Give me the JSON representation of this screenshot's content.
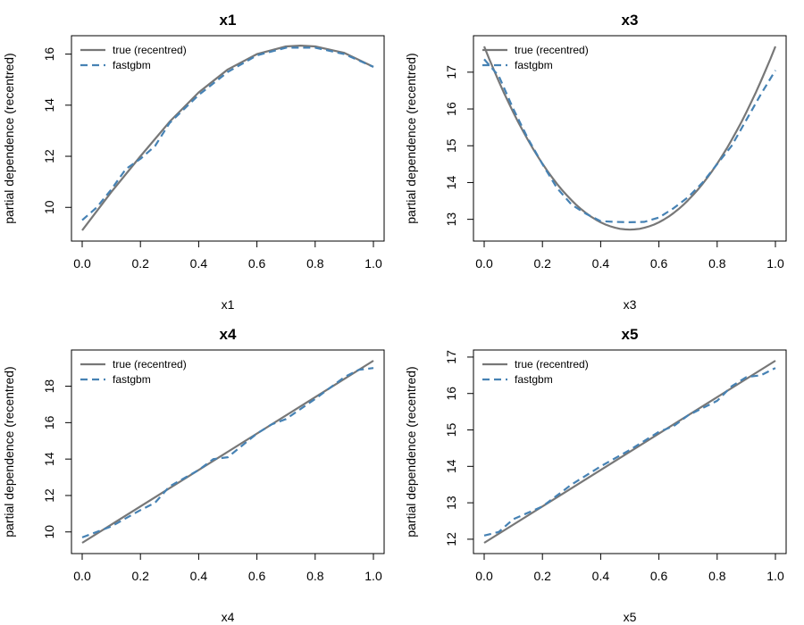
{
  "chart_data": [
    {
      "type": "line",
      "title": "x1",
      "xlabel": "x1",
      "ylabel": "partial dependence (recentred)",
      "xlim": [
        0.0,
        1.0
      ],
      "ylim": [
        9.1,
        16.3
      ],
      "xticks": [
        "0.0",
        "0.2",
        "0.4",
        "0.6",
        "0.8",
        "1.0"
      ],
      "yticks": [
        "10",
        "12",
        "14",
        "16"
      ],
      "legend": {
        "position": "top-left",
        "entries": [
          "true (recentred)",
          "fastgbm"
        ]
      },
      "series": [
        {
          "name": "true (recentred)",
          "color": "#777777",
          "style": "solid",
          "x": [
            0.0,
            0.1,
            0.2,
            0.3,
            0.4,
            0.5,
            0.6,
            0.7,
            0.75,
            0.8,
            0.9,
            1.0
          ],
          "y": [
            9.1,
            10.6,
            12.0,
            13.35,
            14.5,
            15.4,
            16.0,
            16.3,
            16.33,
            16.3,
            16.05,
            15.5
          ]
        },
        {
          "name": "fastgbm",
          "color": "#4682B4",
          "style": "dashed",
          "x": [
            0.0,
            0.05,
            0.1,
            0.15,
            0.2,
            0.25,
            0.3,
            0.4,
            0.5,
            0.6,
            0.7,
            0.8,
            0.9,
            1.0
          ],
          "y": [
            9.5,
            10.0,
            10.7,
            11.5,
            11.9,
            12.4,
            13.3,
            14.4,
            15.3,
            15.95,
            16.25,
            16.25,
            16.0,
            15.5
          ]
        }
      ]
    },
    {
      "type": "line",
      "title": "x3",
      "xlabel": "x3",
      "ylabel": "partial dependence (recentred)",
      "xlim": [
        0.0,
        1.0
      ],
      "ylim": [
        12.7,
        17.7
      ],
      "xticks": [
        "0.0",
        "0.2",
        "0.4",
        "0.6",
        "0.8",
        "1.0"
      ],
      "yticks": [
        "13",
        "14",
        "15",
        "16",
        "17"
      ],
      "legend": {
        "position": "top-left",
        "entries": [
          "true (recentred)",
          "fastgbm"
        ]
      },
      "series": [
        {
          "name": "true (recentred)",
          "color": "#777777",
          "style": "solid",
          "x": [
            0.0,
            0.1,
            0.2,
            0.3,
            0.4,
            0.5,
            0.6,
            0.7,
            0.8,
            0.9,
            1.0
          ],
          "y": [
            17.7,
            16.0,
            14.6,
            13.5,
            12.9,
            12.72,
            12.9,
            13.5,
            14.6,
            16.0,
            17.7
          ],
          "curve": "quadratic"
        },
        {
          "name": "fastgbm",
          "color": "#4682B4",
          "style": "dashed",
          "x": [
            0.0,
            0.05,
            0.1,
            0.15,
            0.2,
            0.25,
            0.3,
            0.35,
            0.4,
            0.45,
            0.5,
            0.55,
            0.6,
            0.65,
            0.7,
            0.75,
            0.8,
            0.85,
            0.9,
            0.95,
            1.0
          ],
          "y": [
            17.35,
            16.9,
            16.0,
            15.2,
            14.5,
            13.85,
            13.4,
            13.15,
            12.95,
            12.93,
            12.92,
            12.93,
            13.05,
            13.3,
            13.6,
            14.0,
            14.5,
            15.0,
            15.7,
            16.4,
            17.05
          ]
        }
      ]
    },
    {
      "type": "line",
      "title": "x4",
      "xlabel": "x4",
      "ylabel": "partial dependence (recentred)",
      "xlim": [
        0.0,
        1.0
      ],
      "ylim": [
        9.4,
        19.4
      ],
      "xticks": [
        "0.0",
        "0.2",
        "0.4",
        "0.6",
        "0.8",
        "1.0"
      ],
      "yticks": [
        "10",
        "12",
        "14",
        "16",
        "18"
      ],
      "legend": {
        "position": "top-left",
        "entries": [
          "true (recentred)",
          "fastgbm"
        ]
      },
      "series": [
        {
          "name": "true (recentred)",
          "color": "#777777",
          "style": "solid",
          "x": [
            0.0,
            1.0
          ],
          "y": [
            9.4,
            19.4
          ]
        },
        {
          "name": "fastgbm",
          "color": "#4682B4",
          "style": "dashed",
          "x": [
            0.0,
            0.1,
            0.2,
            0.25,
            0.3,
            0.4,
            0.45,
            0.5,
            0.6,
            0.65,
            0.7,
            0.8,
            0.9,
            0.95,
            1.0
          ],
          "y": [
            9.7,
            10.3,
            11.2,
            11.6,
            12.5,
            13.4,
            14.0,
            14.1,
            15.4,
            15.9,
            16.2,
            17.3,
            18.5,
            18.9,
            19.0
          ]
        }
      ]
    },
    {
      "type": "line",
      "title": "x5",
      "xlabel": "x5",
      "ylabel": "partial dependence (recentred)",
      "xlim": [
        0.0,
        1.0
      ],
      "ylim": [
        11.9,
        16.9
      ],
      "xticks": [
        "0.0",
        "0.2",
        "0.4",
        "0.6",
        "0.8",
        "1.0"
      ],
      "yticks": [
        "12",
        "13",
        "14",
        "15",
        "16",
        "17"
      ],
      "legend": {
        "position": "top-left",
        "entries": [
          "true (recentred)",
          "fastgbm"
        ]
      },
      "series": [
        {
          "name": "true (recentred)",
          "color": "#777777",
          "style": "solid",
          "x": [
            0.0,
            1.0
          ],
          "y": [
            11.9,
            16.9
          ]
        },
        {
          "name": "fastgbm",
          "color": "#4682B4",
          "style": "dashed",
          "x": [
            0.0,
            0.05,
            0.1,
            0.2,
            0.3,
            0.4,
            0.5,
            0.6,
            0.65,
            0.7,
            0.8,
            0.85,
            0.9,
            0.95,
            1.0
          ],
          "y": [
            12.1,
            12.2,
            12.55,
            12.9,
            13.5,
            14.0,
            14.45,
            14.95,
            15.1,
            15.4,
            15.8,
            16.2,
            16.45,
            16.5,
            16.7
          ]
        }
      ]
    }
  ]
}
